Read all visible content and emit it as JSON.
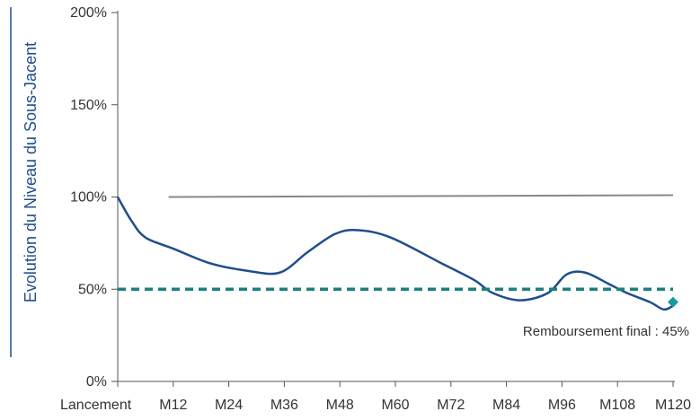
{
  "chart_data": {
    "type": "line",
    "ylabel": "Evolution du Niveau du Sous-Jacent",
    "xlabel": "",
    "ylim": [
      0,
      200
    ],
    "yticks": [
      0,
      50,
      100,
      150,
      200
    ],
    "ytick_labels": [
      "0%",
      "50%",
      "100%",
      "150%",
      "200%"
    ],
    "x_ticks": [
      {
        "x": 0,
        "label": "Lancement"
      },
      {
        "x": 12,
        "label": "M12"
      },
      {
        "x": 24,
        "label": "M24"
      },
      {
        "x": 36,
        "label": "M36"
      },
      {
        "x": 48,
        "label": "M48"
      },
      {
        "x": 60,
        "label": "M60"
      },
      {
        "x": 72,
        "label": "M72"
      },
      {
        "x": 84,
        "label": "M84"
      },
      {
        "x": 96,
        "label": "M96"
      },
      {
        "x": 108,
        "label": "M108"
      },
      {
        "x": 120,
        "label": "M120"
      }
    ],
    "xlim": [
      0,
      120
    ],
    "series": [
      {
        "style": "solid-curve",
        "color": "#1f4e8c",
        "points": [
          [
            0,
            100
          ],
          [
            3,
            87
          ],
          [
            6,
            78
          ],
          [
            12,
            72
          ],
          [
            20,
            64
          ],
          [
            28,
            60
          ],
          [
            35,
            59
          ],
          [
            41,
            70
          ],
          [
            47,
            80
          ],
          [
            52,
            82
          ],
          [
            59,
            78
          ],
          [
            70,
            64
          ],
          [
            77,
            55
          ],
          [
            81,
            48
          ],
          [
            87,
            44
          ],
          [
            93,
            48
          ],
          [
            97,
            58
          ],
          [
            101,
            59
          ],
          [
            106,
            53
          ],
          [
            110,
            48
          ],
          [
            115,
            43
          ],
          [
            118,
            39
          ],
          [
            120,
            41
          ]
        ]
      },
      {
        "style": "solid",
        "color": "#888888",
        "points": [
          [
            11,
            100
          ],
          [
            120,
            101
          ]
        ]
      },
      {
        "style": "dashed",
        "color": "#1a7f7f",
        "points": [
          [
            0,
            50
          ],
          [
            120,
            50
          ]
        ]
      }
    ],
    "marker": {
      "x": 120,
      "y": 43,
      "shape": "diamond",
      "color": "#1a9a9a"
    },
    "annotation": "Remboursement final : 45%"
  }
}
